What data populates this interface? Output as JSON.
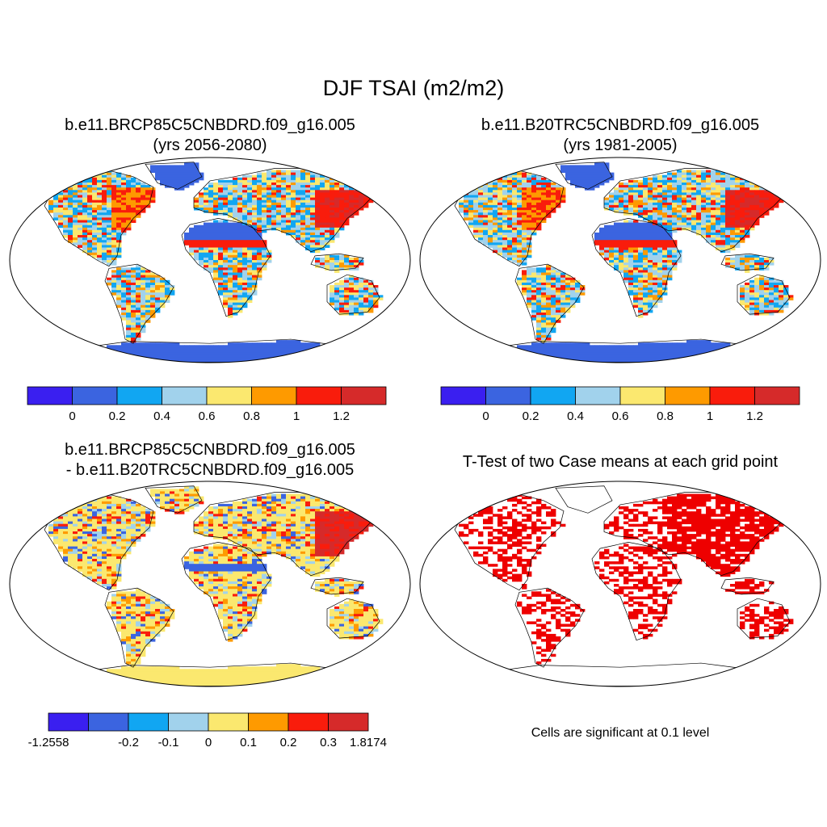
{
  "title": "DJF TSAI (m2/m2)",
  "panels": [
    {
      "title_line1": "b.e11.BRCP85C5CNBDRD.f09_g16.005",
      "title_line2": "(yrs 2056-2080)",
      "colorbar": {
        "colors": [
          "#3a1ff0",
          "#3b64e0",
          "#11a6f2",
          "#a1d2ec",
          "#fbe86f",
          "#fe9a00",
          "#f91c0c",
          "#d62a2a"
        ],
        "labels": [
          "0",
          "0.2",
          "0.4",
          "0.6",
          "0.8",
          "1",
          "1.2"
        ]
      }
    },
    {
      "title_line1": "b.e11.B20TRC5CNBDRD.f09_g16.005",
      "title_line2": "(yrs 1981-2005)",
      "colorbar": {
        "colors": [
          "#3a1ff0",
          "#3b64e0",
          "#11a6f2",
          "#a1d2ec",
          "#fbe86f",
          "#fe9a00",
          "#f91c0c",
          "#d62a2a"
        ],
        "labels": [
          "0",
          "0.2",
          "0.4",
          "0.6",
          "0.8",
          "1",
          "1.2"
        ]
      }
    },
    {
      "title_line1": "b.e11.BRCP85C5CNBDRD.f09_g16.005",
      "title_line2": "- b.e11.B20TRC5CNBDRD.f09_g16.005",
      "colorbar": {
        "colors": [
          "#3a1ff0",
          "#3b64e0",
          "#11a6f2",
          "#a1d2ec",
          "#fbe86f",
          "#fe9a00",
          "#f91c0c",
          "#d62a2a"
        ],
        "labels": [
          "-1.2558",
          "-0.2",
          "-0.1",
          "0",
          "0.1",
          "0.2",
          "0.3",
          "1.8174"
        ]
      }
    },
    {
      "title_line1": "T-Test of two Case means at each grid point",
      "note": "Cells are significant at 0.1 level",
      "significant_color": "#ee0000"
    }
  ]
}
